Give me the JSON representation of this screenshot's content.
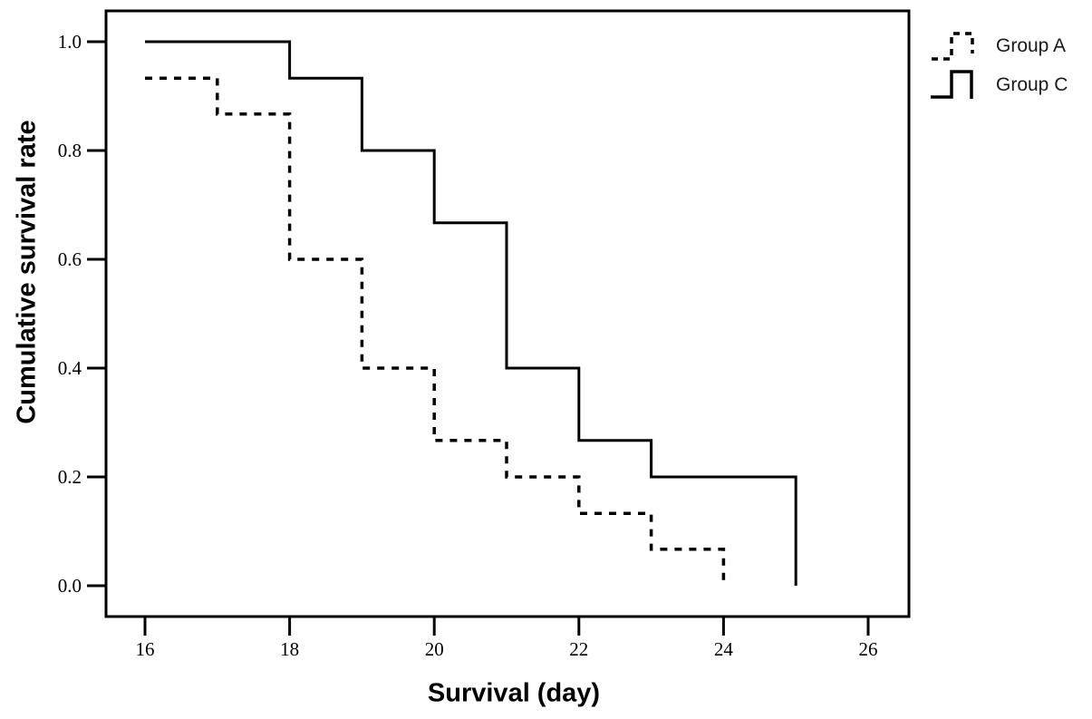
{
  "chart_data": {
    "type": "line",
    "subtype": "step-survival-curve",
    "title": "",
    "xlabel": "Survival (day)",
    "ylabel": "Cumulative survival rate",
    "xlim": [
      15.5,
      26.6
    ],
    "ylim": [
      0.0,
      1.0
    ],
    "grid": false,
    "x_ticks": [
      16,
      18,
      20,
      22,
      24,
      26
    ],
    "y_ticks": [
      {
        "value": 0.0,
        "label": "0.0"
      },
      {
        "value": 0.2,
        "label": "0.2"
      },
      {
        "value": 0.4,
        "label": "0.4"
      },
      {
        "value": 0.6,
        "label": "0.6"
      },
      {
        "value": 0.8,
        "label": "0.8"
      },
      {
        "value": 1.0,
        "label": "1.0"
      }
    ],
    "legend": {
      "position": "top-right",
      "entries": [
        {
          "label": "Group A",
          "line_style": "dashed"
        },
        {
          "label": "Group C",
          "line_style": "solid"
        }
      ]
    },
    "series": [
      {
        "name": "Group A",
        "line_style": "dashed",
        "color": "#000000",
        "steps": [
          {
            "day": 16,
            "survival": 0.933
          },
          {
            "day": 17,
            "survival": 0.867
          },
          {
            "day": 18,
            "survival": 0.6
          },
          {
            "day": 19,
            "survival": 0.4
          },
          {
            "day": 20,
            "survival": 0.267
          },
          {
            "day": 21,
            "survival": 0.2
          },
          {
            "day": 22,
            "survival": 0.133
          },
          {
            "day": 23,
            "survival": 0.067
          },
          {
            "day": 24,
            "survival": 0.0
          }
        ]
      },
      {
        "name": "Group C",
        "line_style": "solid",
        "color": "#000000",
        "steps": [
          {
            "day": 16,
            "survival": 1.0
          },
          {
            "day": 18,
            "survival": 0.933
          },
          {
            "day": 19,
            "survival": 0.8
          },
          {
            "day": 20,
            "survival": 0.667
          },
          {
            "day": 21,
            "survival": 0.4
          },
          {
            "day": 22,
            "survival": 0.267
          },
          {
            "day": 23,
            "survival": 0.2
          },
          {
            "day": 25,
            "survival": 0.0
          }
        ]
      }
    ]
  }
}
